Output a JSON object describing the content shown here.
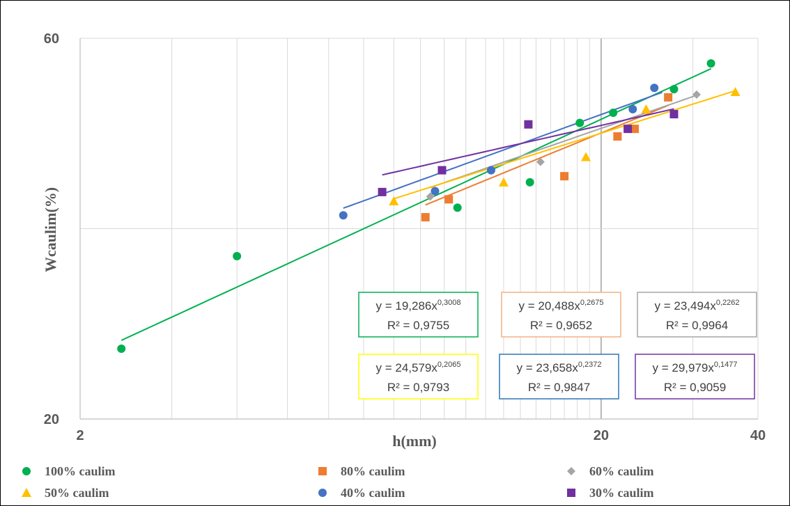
{
  "chart_data": {
    "type": "scatter",
    "x_scale": "log",
    "y_scale": "log",
    "xlabel": "h(mm)",
    "ylabel": "Wcaulim(%)",
    "xlim": [
      2,
      40
    ],
    "ylim": [
      20,
      60
    ],
    "x_ticks": [
      "2",
      "20",
      "40"
    ],
    "y_ticks": [
      "60",
      "20"
    ],
    "grid": true,
    "legend_position": "bottom",
    "series": [
      {
        "name": "100% caulim",
        "color": "#00B050",
        "marker": "circle",
        "points": [
          [
            2.4,
            24.5
          ],
          [
            4.0,
            32.0
          ],
          [
            10.6,
            36.8
          ],
          [
            14.6,
            39.6
          ],
          [
            18.2,
            47.0
          ],
          [
            21.1,
            48.4
          ],
          [
            27.6,
            51.8
          ],
          [
            32.5,
            55.8
          ]
        ],
        "fit": {
          "a": 19.286,
          "b": 0.3008,
          "x_range": [
            2.4,
            32.5
          ]
        },
        "equation": "y = 19,286x",
        "exponent": "0,3008",
        "r2": "R² = 0,9755"
      },
      {
        "name": "80% caulim",
        "color": "#ED7D31",
        "marker": "square",
        "points": [
          [
            9.2,
            35.8
          ],
          [
            10.2,
            37.7
          ],
          [
            17.0,
            40.3
          ],
          [
            21.5,
            45.2
          ],
          [
            23.2,
            46.2
          ],
          [
            26.9,
            50.6
          ]
        ],
        "fit": {
          "a": 20.488,
          "b": 0.2675,
          "x_range": [
            9.2,
            27.0
          ]
        },
        "equation": "y = 20,488x",
        "exponent": "0,2675",
        "r2": "R² = 0,9652"
      },
      {
        "name": "60% caulim",
        "color": "#A5A5A5",
        "marker": "diamond",
        "points": [
          [
            9.4,
            38.0
          ],
          [
            15.3,
            42.0
          ],
          [
            30.5,
            51.0
          ]
        ],
        "fit": {
          "a": 23.494,
          "b": 0.2262,
          "x_range": [
            9.4,
            30.5
          ]
        },
        "equation": "y = 23,494x",
        "exponent": "0,2262",
        "r2": "R² = 0,9964"
      },
      {
        "name": "50% caulim",
        "color": "#FFC000",
        "marker": "triangle",
        "points": [
          [
            8.0,
            37.5
          ],
          [
            13.0,
            39.6
          ],
          [
            18.7,
            42.6
          ],
          [
            24.4,
            48.9
          ],
          [
            36.2,
            51.4
          ]
        ],
        "fit": {
          "a": 24.579,
          "b": 0.2065,
          "x_range": [
            8.0,
            36.2
          ]
        },
        "equation": "y = 24,579x",
        "exponent": "0,2065",
        "r2": "R² = 0,9793"
      },
      {
        "name": "40% caulim",
        "color": "#4472C4",
        "marker": "circle",
        "points": [
          [
            6.4,
            36.0
          ],
          [
            9.6,
            38.6
          ],
          [
            12.3,
            41.0
          ],
          [
            23.0,
            48.9
          ],
          [
            25.3,
            52.0
          ]
        ],
        "fit": {
          "a": 23.658,
          "b": 0.2372,
          "x_range": [
            6.4,
            26.2
          ]
        },
        "equation": "y = 23,658x",
        "exponent": "0,2372",
        "r2": "R² = 0,9847"
      },
      {
        "name": "30% caulim",
        "color": "#7030A0",
        "marker": "square",
        "points": [
          [
            7.6,
            38.5
          ],
          [
            9.9,
            41.0
          ],
          [
            14.5,
            46.8
          ],
          [
            22.5,
            46.2
          ],
          [
            27.6,
            48.2
          ]
        ],
        "fit": {
          "a": 29.979,
          "b": 0.1477,
          "x_range": [
            7.6,
            27.6
          ]
        },
        "equation": "y = 29,979x",
        "exponent": "0,1477",
        "r2": "R² = 0,9059"
      }
    ]
  }
}
